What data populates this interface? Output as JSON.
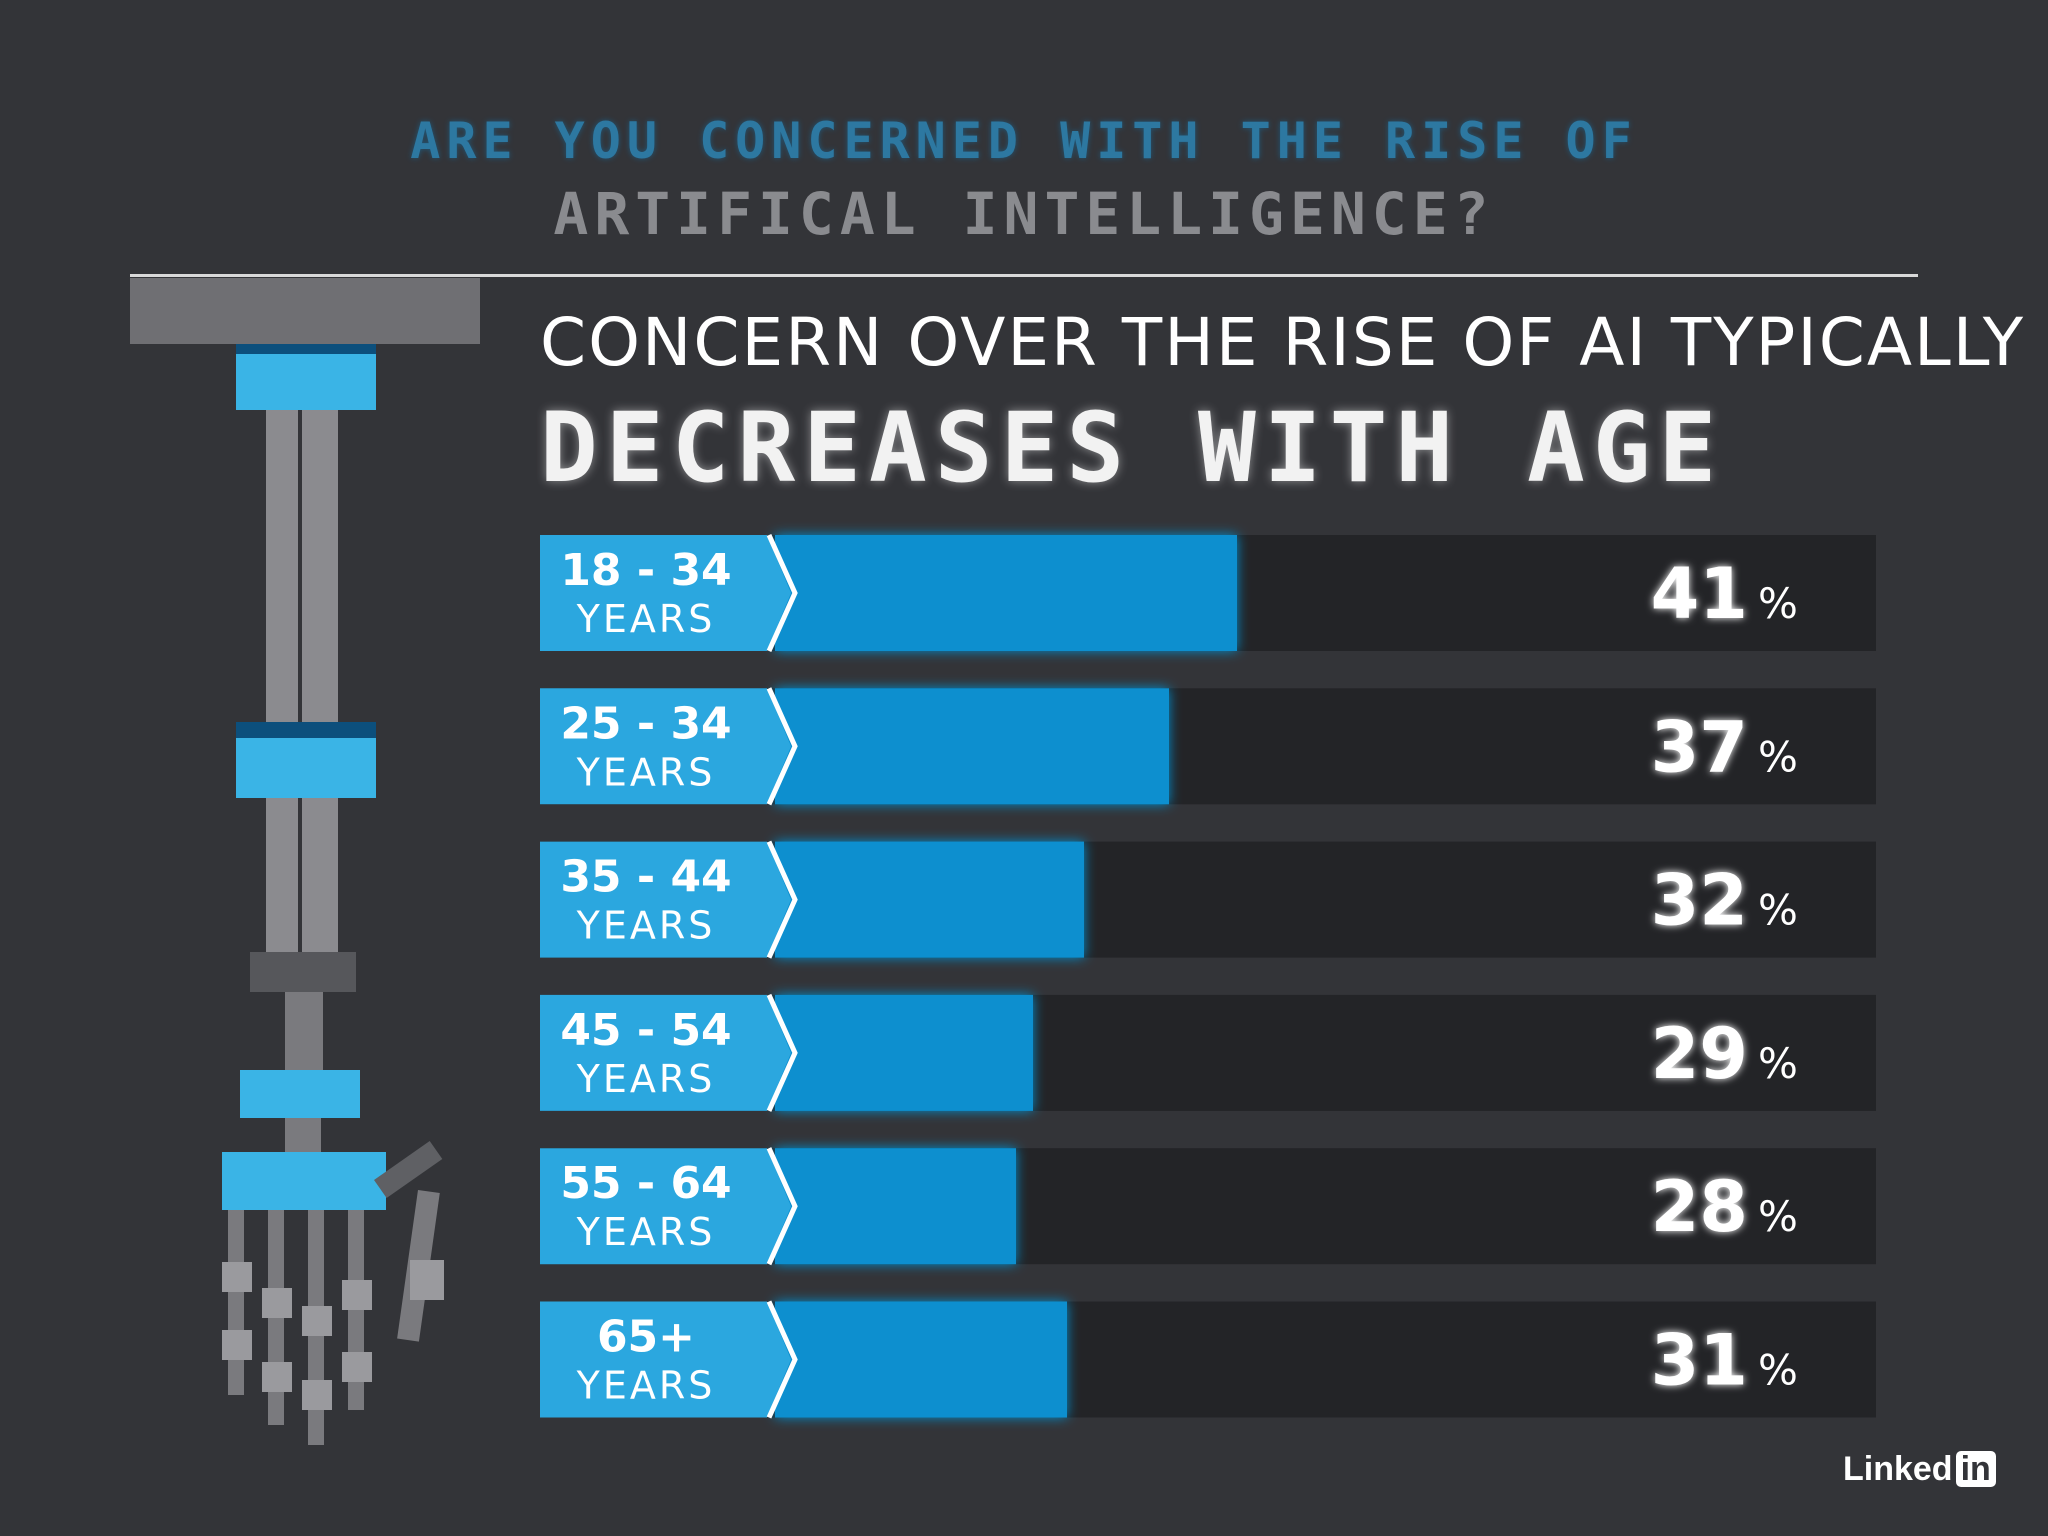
{
  "header": {
    "question_line1": "ARE YOU CONCERNED WITH THE RISE OF",
    "question_line2": "ARTIFICAL INTELLIGENCE?"
  },
  "headline": {
    "line1": "CONCERN OVER THE RISE OF AI TYPICALLY",
    "line2": "DECREASES WITH AGE"
  },
  "brand": {
    "name": "Linked",
    "badge": "in"
  },
  "colors": {
    "background": "#333438",
    "track": "#232427",
    "label_blue": "#2ba7df",
    "bar_blue": "#0a8fcf",
    "text": "#ffffff"
  },
  "chart_data": {
    "type": "bar",
    "orientation": "horizontal",
    "categories": [
      "18 - 34",
      "25 - 34",
      "35 - 44",
      "45 - 54",
      "55 - 64",
      "65+"
    ],
    "category_sublabel": "YEARS",
    "values": [
      41,
      37,
      32,
      29,
      28,
      31
    ],
    "unit": "%",
    "xlim": [
      0,
      100
    ],
    "grid": false,
    "legend": "none"
  }
}
